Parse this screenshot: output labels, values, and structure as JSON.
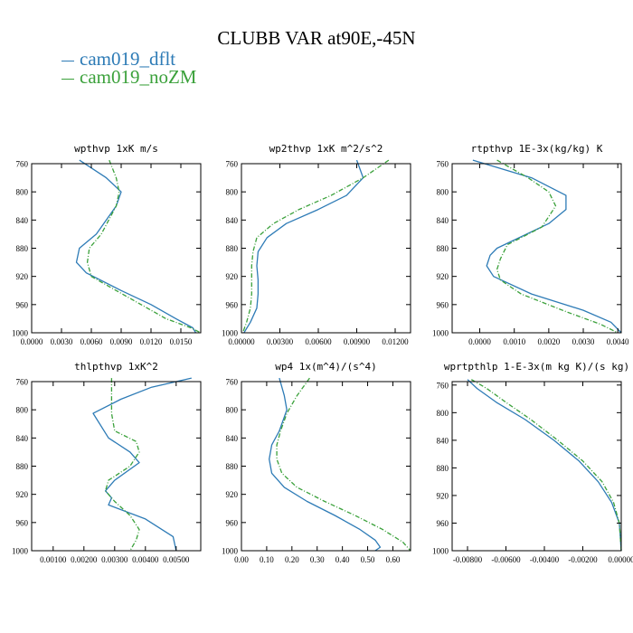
{
  "figure": {
    "title": "CLUBB VAR at90E,-45N",
    "legend": [
      {
        "name": "cam019_dflt",
        "color": "#2d7bb6"
      },
      {
        "name": "cam019_noZM",
        "color": "#3ba13b"
      }
    ]
  },
  "chart_data": [
    {
      "type": "line",
      "title": "wpthvp  1xK m/s",
      "xlim": [
        0,
        0.017
      ],
      "ylim": [
        760,
        1000
      ],
      "y_inverted": true,
      "x_ticks": [
        0.0,
        0.003,
        0.006,
        0.009,
        0.012,
        0.015
      ],
      "x_tick_labels": [
        "0.0000",
        "0.0030",
        "0.0060",
        "0.0090",
        "0.0120",
        "0.0150"
      ],
      "y_ticks": [
        760,
        800,
        840,
        880,
        920,
        960,
        1000
      ],
      "y_tick_labels": [
        "760",
        "800",
        "840",
        "880",
        "920",
        "960",
        "1000"
      ],
      "series": [
        {
          "name": "cam019_dflt",
          "color": "#2d7bb6",
          "dash": "solid",
          "x": [
            0.0048,
            0.0075,
            0.009,
            0.0085,
            0.0065,
            0.0048,
            0.0045,
            0.0055,
            0.009,
            0.012,
            0.0145,
            0.0162,
            0.0165
          ],
          "y": [
            755,
            780,
            800,
            820,
            860,
            880,
            900,
            915,
            940,
            960,
            980,
            993,
            1000
          ]
        },
        {
          "name": "cam019_noZM",
          "color": "#3ba13b",
          "dash": "5,2,1,2",
          "x": [
            0.0078,
            0.0085,
            0.0088,
            0.0085,
            0.007,
            0.0058,
            0.0056,
            0.006,
            0.0085,
            0.011,
            0.0135,
            0.016,
            0.017
          ],
          "y": [
            755,
            780,
            800,
            820,
            860,
            880,
            900,
            920,
            940,
            960,
            980,
            993,
            1000
          ]
        }
      ]
    },
    {
      "type": "line",
      "title": "wp2thvp  1xK m^2/s^2",
      "xlim": [
        0,
        0.0132
      ],
      "ylim": [
        760,
        1000
      ],
      "y_inverted": true,
      "x_ticks": [
        0.0,
        0.003,
        0.006,
        0.009,
        0.012
      ],
      "x_tick_labels": [
        "0.00000",
        "0.00300",
        "0.00600",
        "0.00900",
        "0.01200"
      ],
      "y_ticks": [
        760,
        800,
        840,
        880,
        920,
        960,
        1000
      ],
      "y_tick_labels": [
        "760",
        "800",
        "840",
        "880",
        "920",
        "960",
        "1000"
      ],
      "series": [
        {
          "name": "cam019_dflt",
          "color": "#2d7bb6",
          "dash": "solid",
          "x": [
            0.009,
            0.0095,
            0.0082,
            0.006,
            0.0035,
            0.002,
            0.0013,
            0.0012,
            0.0013,
            0.0013,
            0.0012,
            0.0007,
            0.0002
          ],
          "y": [
            755,
            780,
            805,
            825,
            845,
            865,
            885,
            905,
            925,
            945,
            965,
            985,
            1000
          ]
        },
        {
          "name": "cam019_noZM",
          "color": "#3ba13b",
          "dash": "5,2,1,2",
          "x": [
            0.0115,
            0.0095,
            0.007,
            0.0045,
            0.0025,
            0.0012,
            0.0009,
            0.0008,
            0.0008,
            0.0008,
            0.0007,
            0.0004,
            0.0001
          ],
          "y": [
            755,
            780,
            805,
            825,
            845,
            865,
            885,
            905,
            925,
            945,
            965,
            985,
            1000
          ]
        }
      ]
    },
    {
      "type": "line",
      "title": "rtpthvp  1E-3x(kg/kg) K",
      "xlim": [
        -0.0008,
        0.0041
      ],
      "ylim": [
        760,
        1000
      ],
      "y_inverted": true,
      "x_ticks": [
        0.0,
        0.001,
        0.002,
        0.003,
        0.004
      ],
      "x_tick_labels": [
        "0.0000",
        "0.0010",
        "0.0020",
        "0.0030",
        "0.0040"
      ],
      "y_ticks": [
        760,
        800,
        840,
        880,
        920,
        960,
        1000
      ],
      "y_tick_labels": [
        "760",
        "800",
        "840",
        "880",
        "920",
        "960",
        "1000"
      ],
      "series": [
        {
          "name": "cam019_dflt",
          "color": "#2d7bb6",
          "dash": "solid",
          "x": [
            -0.0002,
            0.0015,
            0.0025,
            0.0025,
            0.002,
            0.0005,
            0.0003,
            0.0002,
            0.0004,
            0.0015,
            0.003,
            0.0038,
            0.0041
          ],
          "y": [
            755,
            780,
            805,
            825,
            845,
            880,
            890,
            905,
            920,
            945,
            968,
            985,
            1000
          ]
        },
        {
          "name": "cam019_noZM",
          "color": "#3ba13b",
          "dash": "5,2,1,2",
          "x": [
            0.0005,
            0.0014,
            0.002,
            0.0022,
            0.0018,
            0.0008,
            0.0006,
            0.0005,
            0.0006,
            0.0012,
            0.0025,
            0.0035,
            0.004
          ],
          "y": [
            755,
            780,
            800,
            820,
            850,
            875,
            895,
            910,
            925,
            945,
            970,
            988,
            1000
          ]
        }
      ]
    },
    {
      "type": "line",
      "title": "thlpthvp  1xK^2",
      "xlim": [
        0.0003,
        0.0058
      ],
      "ylim": [
        760,
        1000
      ],
      "y_inverted": true,
      "x_ticks": [
        0.001,
        0.002,
        0.003,
        0.004,
        0.005
      ],
      "x_tick_labels": [
        "0.00100",
        "0.00200",
        "0.00300",
        "0.00400",
        "0.00500"
      ],
      "y_ticks": [
        760,
        800,
        840,
        880,
        920,
        960,
        1000
      ],
      "y_tick_labels": [
        "760",
        "800",
        "840",
        "880",
        "920",
        "960",
        "1000"
      ],
      "series": [
        {
          "name": "cam019_dflt",
          "color": "#2d7bb6",
          "dash": "solid",
          "x": [
            0.0055,
            0.0042,
            0.0032,
            0.0023,
            0.0028,
            0.0035,
            0.0038,
            0.003,
            0.0027,
            0.0029,
            0.0028,
            0.004,
            0.0049,
            0.005
          ],
          "y": [
            755,
            768,
            785,
            805,
            840,
            860,
            875,
            900,
            915,
            925,
            935,
            955,
            980,
            1000
          ]
        },
        {
          "name": "cam019_noZM",
          "color": "#3ba13b",
          "dash": "5,2,1,2",
          "x": [
            0.0029,
            0.0029,
            0.0029,
            0.003,
            0.0037,
            0.0038,
            0.0035,
            0.0028,
            0.0027,
            0.003,
            0.0035,
            0.0038,
            0.0037,
            0.0035
          ],
          "y": [
            755,
            780,
            805,
            830,
            845,
            860,
            880,
            900,
            915,
            930,
            950,
            970,
            985,
            1000
          ]
        }
      ]
    },
    {
      "type": "line",
      "title": "wp4  1x(m^4)/(s^4)",
      "xlim": [
        0,
        0.67
      ],
      "ylim": [
        760,
        1000
      ],
      "y_inverted": true,
      "x_ticks": [
        0.0,
        0.1,
        0.2,
        0.3,
        0.4,
        0.5,
        0.6
      ],
      "x_tick_labels": [
        "0.00",
        "0.10",
        "0.20",
        "0.30",
        "0.40",
        "0.50",
        "0.60"
      ],
      "y_ticks": [
        760,
        800,
        840,
        880,
        920,
        960,
        1000
      ],
      "y_tick_labels": [
        "760",
        "800",
        "840",
        "880",
        "920",
        "960",
        "1000"
      ],
      "series": [
        {
          "name": "cam019_dflt",
          "color": "#2d7bb6",
          "dash": "solid",
          "x": [
            0.15,
            0.17,
            0.18,
            0.15,
            0.12,
            0.11,
            0.12,
            0.17,
            0.26,
            0.37,
            0.47,
            0.53,
            0.55,
            0.53
          ],
          "y": [
            755,
            780,
            800,
            830,
            850,
            870,
            890,
            910,
            930,
            950,
            970,
            985,
            995,
            1000
          ]
        },
        {
          "name": "cam019_noZM",
          "color": "#3ba13b",
          "dash": "5,2,1,2",
          "x": [
            0.27,
            0.22,
            0.18,
            0.155,
            0.14,
            0.14,
            0.16,
            0.22,
            0.33,
            0.45,
            0.56,
            0.64,
            0.67
          ],
          "y": [
            755,
            780,
            805,
            830,
            850,
            870,
            890,
            910,
            930,
            950,
            970,
            988,
            1000
          ]
        }
      ]
    },
    {
      "type": "line",
      "title": "wprtpthlp  1-E-3x(m kg K)/(s kg)",
      "xlim": [
        -0.0088,
        0.0
      ],
      "ylim": [
        755,
        1000
      ],
      "y_inverted": true,
      "x_ticks": [
        -0.008,
        -0.006,
        -0.004,
        -0.002,
        0.0
      ],
      "x_tick_labels": [
        "-0.00800",
        "-0.00600",
        "-0.00400",
        "-0.00200",
        "0.00000"
      ],
      "y_ticks": [
        760,
        800,
        840,
        880,
        920,
        960,
        1000
      ],
      "y_tick_labels": [
        "760",
        "800",
        "840",
        "880",
        "920",
        "960",
        "1000"
      ],
      "series": [
        {
          "name": "cam019_dflt",
          "color": "#2d7bb6",
          "dash": "solid",
          "x": [
            -0.008,
            -0.0075,
            -0.0065,
            -0.005,
            -0.0035,
            -0.0022,
            -0.0012,
            -0.0005,
            -0.0001,
            0.0
          ],
          "y": [
            752,
            765,
            785,
            810,
            840,
            870,
            900,
            930,
            960,
            1000
          ]
        },
        {
          "name": "cam019_noZM",
          "color": "#3ba13b",
          "dash": "5,2,1,2",
          "x": [
            -0.0078,
            -0.007,
            -0.006,
            -0.0047,
            -0.0033,
            -0.002,
            -0.001,
            -0.0004,
            -0.0001,
            0.0
          ],
          "y": [
            752,
            765,
            785,
            810,
            840,
            870,
            900,
            930,
            960,
            1000
          ]
        }
      ]
    }
  ]
}
